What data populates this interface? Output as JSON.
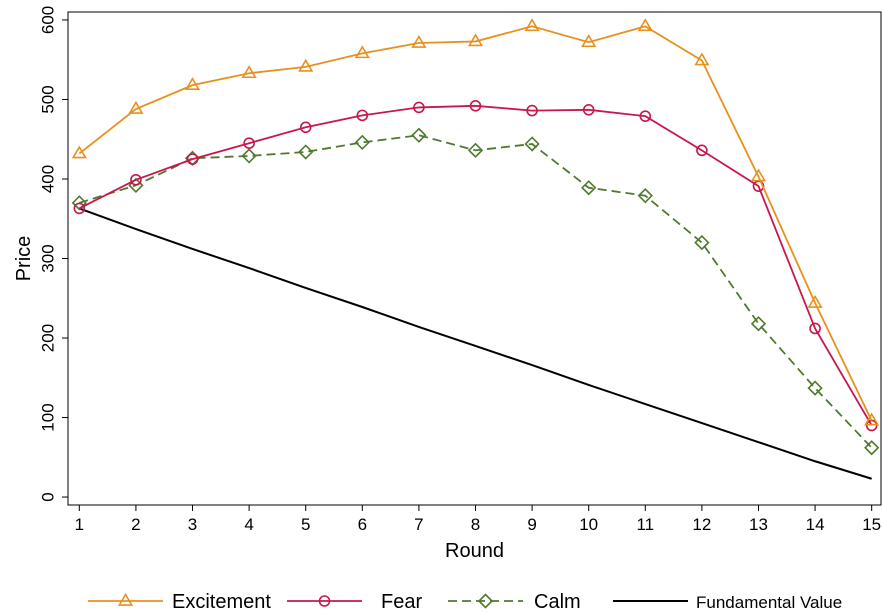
{
  "chart_data": {
    "type": "line",
    "xlabel": "Round",
    "ylabel": "Price",
    "x": [
      1,
      2,
      3,
      4,
      5,
      6,
      7,
      8,
      9,
      10,
      11,
      12,
      13,
      14,
      15
    ],
    "xticks": [
      "1",
      "2",
      "3",
      "4",
      "5",
      "6",
      "7",
      "8",
      "9",
      "10",
      "11",
      "12",
      "13",
      "14",
      "15"
    ],
    "yticks": [
      "0",
      "100",
      "200",
      "300",
      "400",
      "500",
      "600"
    ],
    "xlim": [
      0.8,
      15.2
    ],
    "ylim": [
      -10,
      610
    ],
    "grid": false,
    "legend_position": "bottom",
    "series": [
      {
        "name": "Excitement",
        "color": "#E8901E",
        "marker": "triangle",
        "line_style": "solid",
        "values": [
          432,
          488,
          518,
          533,
          541,
          558,
          571,
          573,
          592,
          572,
          592,
          549,
          403,
          244,
          96
        ]
      },
      {
        "name": "Fear",
        "color": "#C8174C",
        "marker": "circle",
        "line_style": "solid",
        "values": [
          363,
          399,
          425,
          445,
          465,
          480,
          490,
          492,
          486,
          487,
          479,
          436,
          391,
          212,
          90
        ]
      },
      {
        "name": "Calm",
        "color": "#4F7A2E",
        "marker": "diamond",
        "line_style": "dashed",
        "values": [
          370,
          392,
          426,
          429,
          434,
          446,
          455,
          436,
          444,
          389,
          379,
          320,
          218,
          137,
          62
        ]
      },
      {
        "name": "Fundamental Value",
        "color": "#000000",
        "marker": "none",
        "line_style": "solid",
        "values": [
          363,
          337,
          312,
          288,
          263,
          239,
          214,
          190,
          166,
          141,
          117,
          93,
          69,
          45,
          23
        ]
      }
    ]
  }
}
